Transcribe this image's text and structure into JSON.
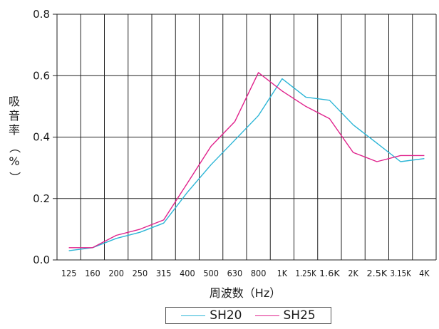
{
  "chart_data": {
    "type": "line",
    "xlabel": "周波数（Hz）",
    "ylabel": [
      "吸",
      "音",
      "率",
      "（",
      "%",
      "）"
    ],
    "ylim": [
      0,
      0.8
    ],
    "yticks": [
      "0.0",
      "0.2",
      "0.4",
      "0.6",
      "0.8"
    ],
    "ytick_values": [
      0,
      0.2,
      0.4,
      0.6,
      0.8
    ],
    "grid": true,
    "legend_position": "bottom-center",
    "categories": [
      "125",
      "160",
      "200",
      "250",
      "315",
      "400",
      "500",
      "630",
      "800",
      "1K",
      "1.25K",
      "1.6K",
      "2K",
      "2.5K",
      "3.15K",
      "4K"
    ],
    "series": [
      {
        "name": "SH20",
        "color": "#2bb5d6",
        "values": [
          0.03,
          0.04,
          0.07,
          0.09,
          0.12,
          0.22,
          0.31,
          0.39,
          0.47,
          0.59,
          0.53,
          0.52,
          0.44,
          0.38,
          0.32,
          0.33
        ]
      },
      {
        "name": "SH25",
        "color": "#e0228c",
        "values": [
          0.04,
          0.04,
          0.08,
          0.1,
          0.13,
          0.25,
          0.37,
          0.45,
          0.61,
          0.55,
          0.5,
          0.46,
          0.35,
          0.32,
          0.34,
          0.34
        ]
      }
    ]
  }
}
